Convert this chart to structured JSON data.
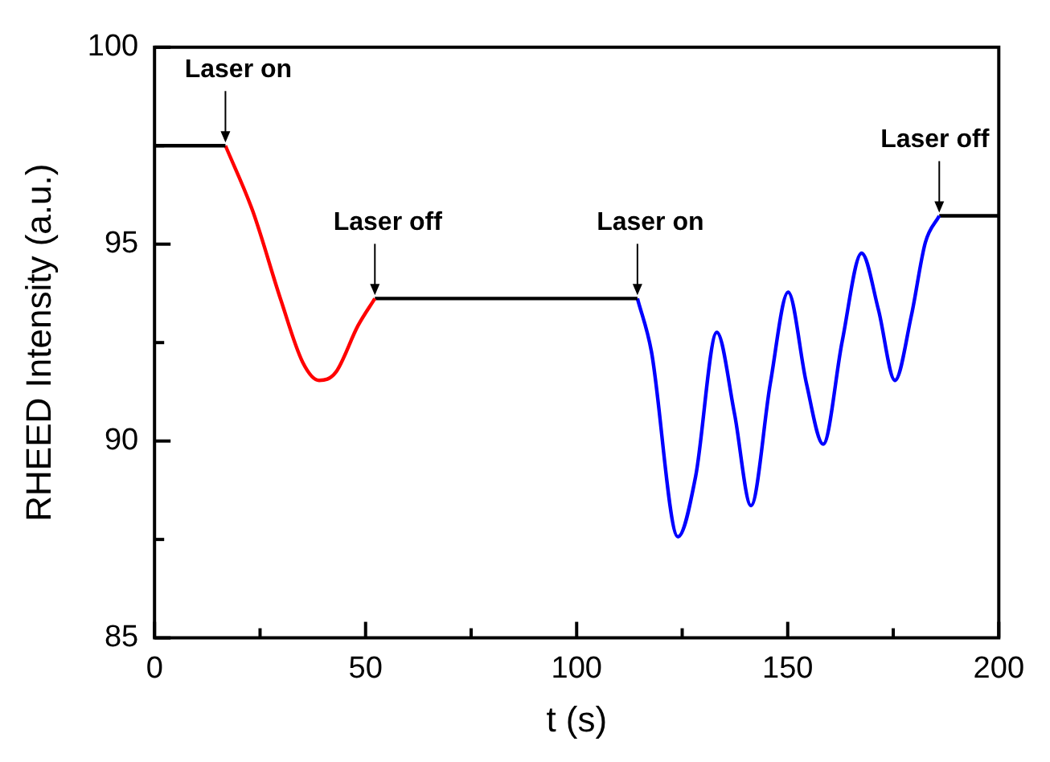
{
  "chart_data": {
    "type": "line",
    "xlabel": "t (s)",
    "ylabel": "RHEED Intensity (a.u.)",
    "xlim": [
      0,
      200
    ],
    "xticks": [
      0,
      {
        "value": 25,
        "label": null
      },
      50,
      {
        "value": 75,
        "label": null
      },
      100,
      {
        "value": 125,
        "label": null
      },
      150,
      {
        "value": 175,
        "label": null
      },
      200
    ],
    "ylim": [
      85,
      100
    ],
    "yticks": [
      85,
      {
        "value": 87.5,
        "label": null
      },
      90,
      {
        "value": 92.5,
        "label": null
      },
      95,
      {
        "value": 97.5,
        "label": null
      },
      100
    ],
    "grid": false,
    "legend": false,
    "marker": "none",
    "series": [
      {
        "color": "#000000",
        "x": [
          0,
          16.8
        ],
        "values": [
          97.5,
          97.5
        ]
      },
      {
        "color": "#ff0000",
        "x": [
          16.8,
          23.3,
          29.9,
          35.1,
          39.0,
          42.9,
          48.2,
          52.2
        ],
        "values": [
          97.5,
          95.83,
          93.59,
          92.0,
          91.54,
          91.74,
          92.93,
          93.62
        ]
      },
      {
        "color": "#000000",
        "x": [
          52.2,
          114.4
        ],
        "values": [
          93.62,
          93.62
        ]
      },
      {
        "color": "#0000ff",
        "x": [
          114.4,
          117.7,
          124.0,
          128.2,
          133.2,
          137.4,
          141.3,
          145.9,
          150.1,
          154.4,
          158.4,
          162.9,
          167.5,
          171.5,
          175.4,
          179.3,
          182.6,
          185.9
        ],
        "values": [
          93.62,
          92.28,
          87.57,
          89.11,
          92.76,
          90.69,
          88.36,
          91.48,
          93.78,
          91.48,
          89.92,
          92.53,
          94.77,
          93.33,
          91.54,
          93.19,
          95.04,
          95.72
        ]
      },
      {
        "color": "#000000",
        "x": [
          185.9,
          200
        ],
        "values": [
          95.72,
          95.72
        ]
      }
    ],
    "annotations": [
      {
        "text": "Laser on",
        "x": 16.8,
        "y": 97.5
      },
      {
        "text": "Laser off",
        "x": 52.2,
        "y": 93.62
      },
      {
        "text": "Laser on",
        "x": 114.4,
        "y": 93.62
      },
      {
        "text": "Laser off",
        "x": 185.9,
        "y": 95.72
      }
    ]
  }
}
